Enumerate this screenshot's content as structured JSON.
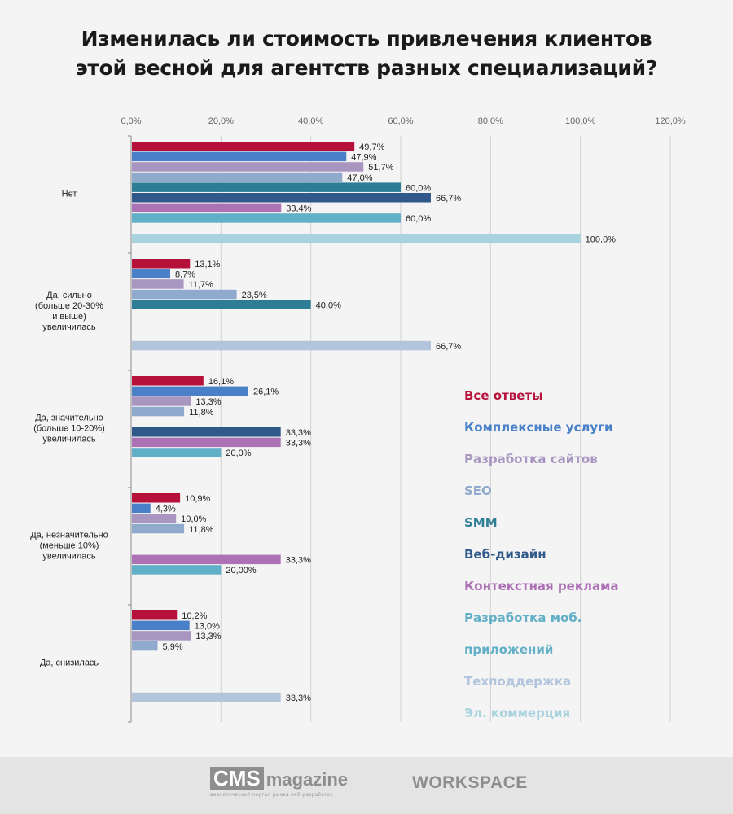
{
  "chart_data": {
    "type": "bar",
    "orientation": "horizontal",
    "title": "Изменилась ли стоимость привлечения клиентов\nэтой весной для агентств разных специализаций?",
    "xlabel": "",
    "ylabel": "",
    "xlim": [
      0,
      120
    ],
    "x_ticks": [
      "0,0%",
      "20,0%",
      "40,0%",
      "60,0%",
      "80,0%",
      "100,0%",
      "120,0%"
    ],
    "grid": true,
    "legend_position": "right",
    "categories": [
      "Нет",
      "Да, сильно\n(больше 20-30%\nи выше)\nувеличилась",
      "Да, значительно\n(больше 10-20%)\nувеличилась",
      "Да, незначительно\n(меньше 10%)\nувеличилась",
      "Да, снизилась"
    ],
    "series": [
      {
        "name": "Все ответы",
        "legend": "Все ответы",
        "color": "#b5113a",
        "values": [
          49.7,
          13.1,
          16.1,
          10.9,
          10.2
        ],
        "labels": [
          "49,7%",
          "13,1%",
          "16,1%",
          "10,9%",
          "10,2%"
        ]
      },
      {
        "name": "Комплексные услуги",
        "legend": "Комплексные услуги",
        "color": "#4a80c8",
        "values": [
          47.9,
          8.7,
          26.1,
          4.3,
          13.0
        ],
        "labels": [
          "47,9%",
          "8,7%",
          "26,1%",
          "4,3%",
          "13,0%"
        ]
      },
      {
        "name": "Разработка сайтов",
        "legend": "Разработка сайтов",
        "color": "#a896c0",
        "values": [
          51.7,
          11.7,
          13.3,
          10.0,
          13.3
        ],
        "labels": [
          "51,7%",
          "11,7%",
          "13,3%",
          "10,0%",
          "13,3%"
        ]
      },
      {
        "name": "SEO",
        "legend": "SEO",
        "color": "#8faacd",
        "values": [
          47.0,
          23.5,
          11.8,
          11.8,
          5.9
        ],
        "labels": [
          "47,0%",
          "23,5%",
          "11,8%",
          "11,8%",
          "5,9%"
        ]
      },
      {
        "name": "SMM",
        "legend": "SMM",
        "color": "#2e7d96",
        "values": [
          60.0,
          40.0,
          null,
          null,
          null
        ],
        "labels": [
          "60,0%",
          "40,0%",
          null,
          null,
          null
        ]
      },
      {
        "name": "Веб-дизайн",
        "legend": "Веб-дизайн",
        "color": "#30598a",
        "values": [
          66.7,
          null,
          33.3,
          null,
          null
        ],
        "labels": [
          "66,7%",
          null,
          "33,3%",
          null,
          null
        ]
      },
      {
        "name": "Контекстная реклама",
        "legend": "Контекстная реклама",
        "color": "#ad72b6",
        "values": [
          33.4,
          null,
          33.3,
          33.3,
          null
        ],
        "labels": [
          "33,4%",
          null,
          "33,3%",
          "33,3%",
          null
        ]
      },
      {
        "name": "Разработка моб. приложений",
        "legend": "Разработка моб.\nприложений",
        "color": "#62b0c8",
        "values": [
          60.0,
          null,
          20.0,
          20.0,
          null
        ],
        "labels": [
          "60,0%",
          null,
          "20,0%",
          "20,00%",
          null
        ]
      },
      {
        "name": "Техподдержка",
        "legend": "Техподдержка",
        "color": "#b2c5dc",
        "values": [
          null,
          66.7,
          null,
          null,
          33.3
        ],
        "labels": [
          null,
          "66,7%",
          null,
          null,
          "33,3%"
        ]
      },
      {
        "name": "Эл. коммерция",
        "legend": "Эл. коммерция",
        "color": "#a8d2de",
        "values": [
          100.0,
          null,
          null,
          null,
          null
        ],
        "labels": [
          "100,0%",
          null,
          null,
          null,
          null
        ]
      }
    ]
  },
  "footer": {
    "cms_logo": "CMS",
    "cms_logo_suffix": "magazine",
    "cms_tagline": "аналитический портал рынка веб-разработок",
    "workspace_logo": "WORKSPACE"
  }
}
